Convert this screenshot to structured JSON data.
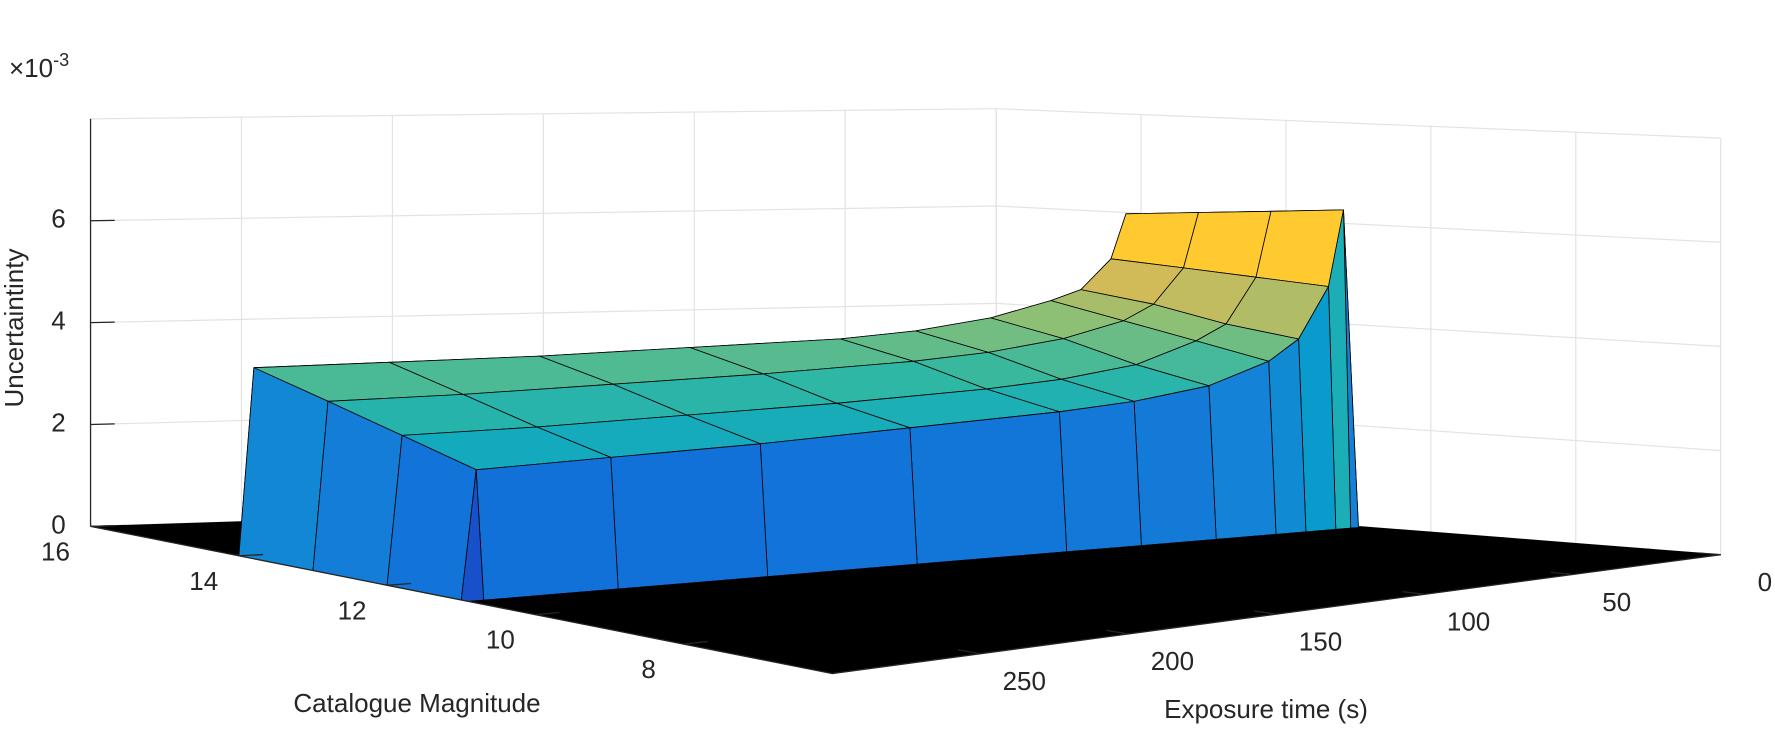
{
  "chart_data": {
    "type": "surface",
    "zlabel": "Uncertaintinty",
    "ylabel": "Catalogue Magnitude",
    "xlabel": "Exposure time (s)",
    "z_multiplier": "×10",
    "z_exponent": "-3",
    "x": [
      0,
      5,
      10,
      20,
      30,
      50,
      75,
      100,
      150,
      200,
      250,
      295,
      300
    ],
    "y": [
      6,
      7,
      8,
      9,
      10,
      10.9,
      11,
      12,
      13,
      14,
      14.1,
      15,
      16
    ],
    "z": [
      [
        0,
        0,
        0,
        0,
        0,
        0,
        0,
        0,
        0,
        0,
        0,
        0,
        0
      ],
      [
        0,
        0,
        0,
        0,
        0,
        0,
        0,
        0,
        0,
        0,
        0,
        0,
        0
      ],
      [
        0,
        0,
        0,
        0,
        0,
        0,
        0,
        0,
        0,
        0,
        0,
        0,
        0
      ],
      [
        0,
        0,
        0,
        0,
        0,
        0,
        0,
        0,
        0,
        0,
        0,
        0,
        0
      ],
      [
        0,
        0,
        0,
        0,
        0,
        0,
        0,
        0,
        0,
        0,
        0,
        0,
        0
      ],
      [
        0,
        0,
        0,
        0,
        0,
        0,
        0,
        0,
        0,
        0,
        0,
        0,
        0
      ],
      [
        0,
        6.3,
        4.8,
        3.8,
        3.4,
        3.0,
        2.8,
        2.7,
        2.6,
        2.5,
        2.45,
        2.4,
        0
      ],
      [
        0,
        6.2,
        4.9,
        4.0,
        3.7,
        3.3,
        3.1,
        3.0,
        2.9,
        2.85,
        2.8,
        2.8,
        0
      ],
      [
        0,
        6.1,
        5.0,
        4.3,
        4.0,
        3.7,
        3.5,
        3.4,
        3.3,
        3.25,
        3.2,
        3.2,
        0
      ],
      [
        0,
        6.0,
        5.1,
        4.5,
        4.3,
        4.0,
        3.8,
        3.7,
        3.65,
        3.6,
        3.6,
        3.6,
        0
      ],
      [
        0,
        0,
        0,
        0,
        0,
        0,
        0,
        0,
        0,
        0,
        0,
        0,
        0
      ],
      [
        0,
        0,
        0,
        0,
        0,
        0,
        0,
        0,
        0,
        0,
        0,
        0,
        0
      ],
      [
        0,
        0,
        0,
        0,
        0,
        0,
        0,
        0,
        0,
        0,
        0,
        0,
        0
      ]
    ],
    "xlim": [
      0,
      300
    ],
    "xticks": [
      0,
      50,
      100,
      150,
      200,
      250
    ],
    "ylim": [
      6,
      16
    ],
    "yticks": [
      8,
      10,
      12,
      14,
      16
    ],
    "zlim": [
      0,
      8
    ],
    "zticks": [
      0,
      2,
      4,
      6
    ],
    "grid": true,
    "edgecolor": "#000000",
    "colormap": [
      "#352a87",
      "#0f5cdd",
      "#1481d6",
      "#06a4ca",
      "#2eb7a4",
      "#87bf77",
      "#d1bb59",
      "#fec832",
      "#f9fb0e"
    ]
  }
}
